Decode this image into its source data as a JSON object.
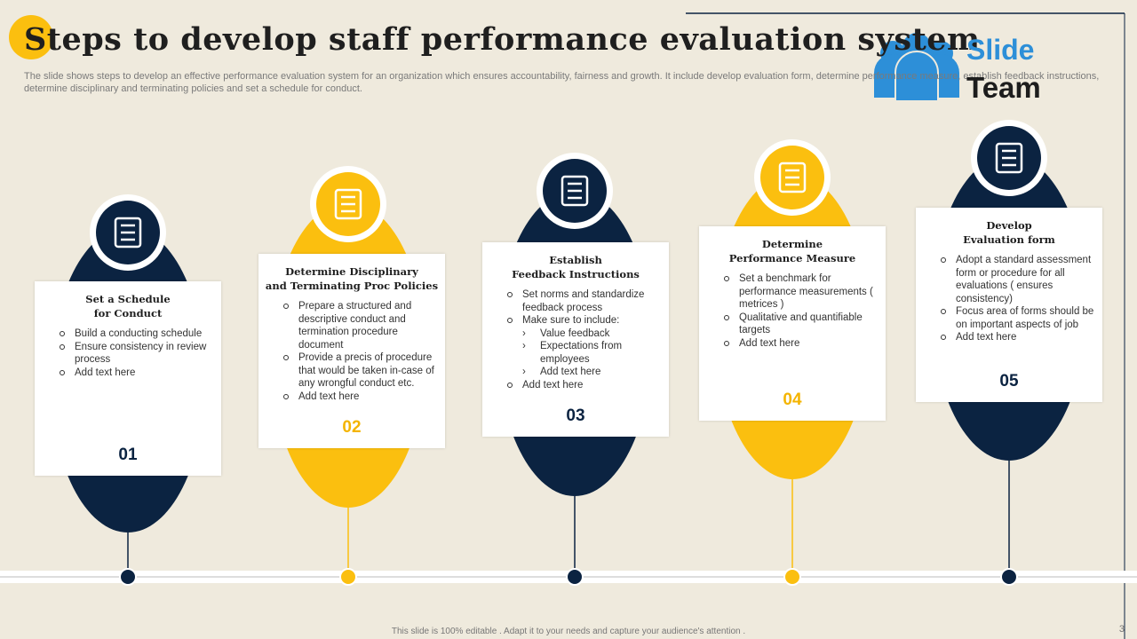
{
  "title": "Steps to develop staff performance evaluation system",
  "subtitle": "The slide shows steps to develop an effective performance evaluation system for an organization which ensures accountability, fairness and growth. It include develop evaluation form, determine performance measure, establish feedback instructions, determine disciplinary and terminating policies and set a schedule for conduct.",
  "logo": {
    "line1": "Slide",
    "line2": "Team"
  },
  "steps": [
    {
      "title_lines": [
        "Set a Schedule",
        "for Conduct"
      ],
      "bullets": [
        {
          "text": "Build a conducting schedule"
        },
        {
          "text": "Ensure consistency in review process"
        },
        {
          "text": "Add text here"
        }
      ],
      "number": "01"
    },
    {
      "title_lines": [
        "Determine Disciplinary",
        "and Terminating Proc Policies"
      ],
      "bullets": [
        {
          "text": "Prepare a structured and descriptive conduct and termination procedure document"
        },
        {
          "text": "Provide a precis of procedure that would be taken in-case of any wrongful conduct etc."
        },
        {
          "text": "Add text here"
        }
      ],
      "number": "02"
    },
    {
      "title_lines": [
        "Establish",
        "Feedback Instructions"
      ],
      "bullets": [
        {
          "text": "Set norms and standardize feedback process"
        },
        {
          "text": "Make sure to include:",
          "sub": [
            "Value feedback",
            "Expectations from employees",
            "Add text here"
          ]
        },
        {
          "text": "Add text here"
        }
      ],
      "number": "03"
    },
    {
      "title_lines": [
        "Determine",
        "Performance Measure"
      ],
      "bullets": [
        {
          "text": "Set a benchmark for performance measurements ( metrices )"
        },
        {
          "text": "Qualitative and quantifiable targets"
        },
        {
          "text": "Add text here"
        }
      ],
      "number": "04"
    },
    {
      "title_lines": [
        "Develop",
        "Evaluation form"
      ],
      "bullets": [
        {
          "text": "Adopt a standard assessment form or procedure for all evaluations ( ensures consistency)"
        },
        {
          "text": "Focus area of forms should be on important aspects of job"
        },
        {
          "text": "Add text here"
        }
      ],
      "number": "05"
    }
  ],
  "footer": "This slide is 100% editable . Adapt it to your needs and capture your audience's attention .",
  "page_number": "3"
}
